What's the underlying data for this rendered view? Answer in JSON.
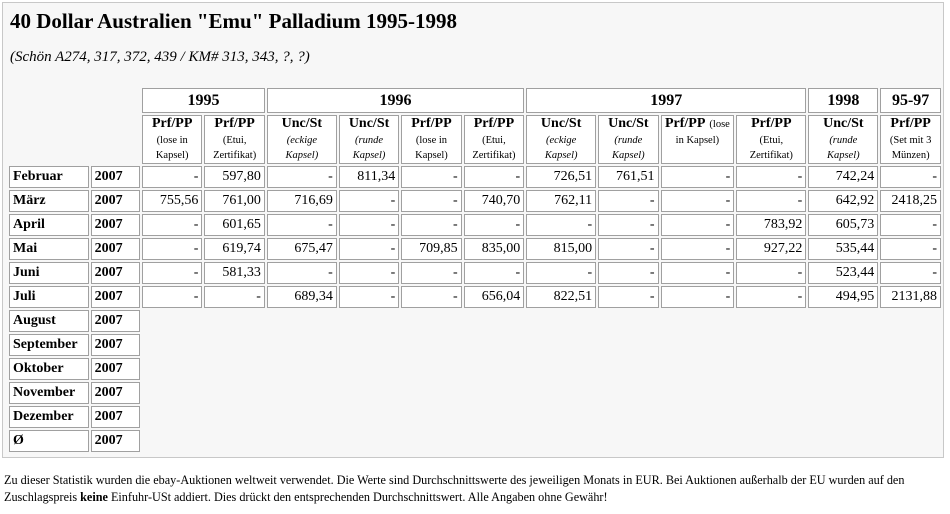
{
  "title": "40 Dollar Australien \"Emu\" Palladium 1995-1998",
  "subtitle": "(Schön A274, 317, 372, 439 / KM# 313, 343, ?, ?)",
  "year_groups": [
    {
      "label": "1995",
      "span": 2
    },
    {
      "label": "1996",
      "span": 4
    },
    {
      "label": "1997",
      "span": 4
    },
    {
      "label": "1998",
      "span": 1
    },
    {
      "label": "95-97",
      "span": 1
    }
  ],
  "columns": [
    {
      "title": "Prf/PP",
      "sub": "(lose in Kapsel)",
      "italic": false
    },
    {
      "title": "Prf/PP",
      "sub": "(Etui, Zertifikat)",
      "italic": false
    },
    {
      "title": "Unc/St",
      "sub": "(eckige Kapsel)",
      "italic": true
    },
    {
      "title": "Unc/St",
      "sub": "(runde Kapsel)",
      "italic": true
    },
    {
      "title": "Prf/PP",
      "sub": "(lose in Kapsel)",
      "italic": false
    },
    {
      "title": "Prf/PP",
      "sub": "(Etui, Zertifikat)",
      "italic": false
    },
    {
      "title": "Unc/St",
      "sub": "(eckige Kapsel)",
      "italic": true
    },
    {
      "title": "Unc/St",
      "sub": "(runde Kapsel)",
      "italic": true
    },
    {
      "title": "Prf/PP",
      "sub": "(lose in Kapsel)",
      "italic": false,
      "inline": true
    },
    {
      "title": "Prf/PP",
      "sub": "(Etui, Zertifikat)",
      "italic": false
    },
    {
      "title": "Unc/St",
      "sub": "(runde Kapsel)",
      "italic": true
    },
    {
      "title": "Prf/PP",
      "sub": "(Set mit 3 Münzen)",
      "italic": false
    }
  ],
  "rows": [
    {
      "month": "Februar",
      "year": "2007",
      "values": [
        "-",
        "597,80",
        "-",
        "811,34",
        "-",
        "-",
        "726,51",
        "761,51",
        "-",
        "-",
        "742,24",
        "-"
      ]
    },
    {
      "month": "März",
      "year": "2007",
      "values": [
        "755,56",
        "761,00",
        "716,69",
        "-",
        "-",
        "740,70",
        "762,11",
        "-",
        "-",
        "-",
        "642,92",
        "2418,25"
      ]
    },
    {
      "month": "April",
      "year": "2007",
      "values": [
        "-",
        "601,65",
        "-",
        "-",
        "-",
        "-",
        "-",
        "-",
        "-",
        "783,92",
        "605,73",
        "-"
      ]
    },
    {
      "month": "Mai",
      "year": "2007",
      "values": [
        "-",
        "619,74",
        "675,47",
        "-",
        "709,85",
        "835,00",
        "815,00",
        "-",
        "-",
        "927,22",
        "535,44",
        "-"
      ]
    },
    {
      "month": "Juni",
      "year": "2007",
      "values": [
        "-",
        "581,33",
        "-",
        "-",
        "-",
        "-",
        "-",
        "-",
        "-",
        "-",
        "523,44",
        "-"
      ]
    },
    {
      "month": "Juli",
      "year": "2007",
      "values": [
        "-",
        "-",
        "689,34",
        "-",
        "-",
        "656,04",
        "822,51",
        "-",
        "-",
        "-",
        "494,95",
        "2131,88"
      ]
    },
    {
      "month": "August",
      "year": "2007",
      "values": []
    },
    {
      "month": "September",
      "year": "2007",
      "values": []
    },
    {
      "month": "Oktober",
      "year": "2007",
      "values": []
    },
    {
      "month": "November",
      "year": "2007",
      "values": []
    },
    {
      "month": "Dezember",
      "year": "2007",
      "values": []
    },
    {
      "month": "Ø",
      "year": "2007",
      "values": []
    }
  ],
  "footnote": {
    "part1": "Zu dieser Statistik wurden die ebay-Auktionen weltweit verwendet. Die Werte sind Durchschnittswerte des jeweiligen Monats in EUR. Bei Auktionen außerhalb der EU wurden auf den Zuschlagspreis ",
    "bold": "keine",
    "part2": " Einfuhr-USt addiert. Dies drückt den entsprechenden Durchschnittswert. Alle Angaben ohne Gewähr!"
  }
}
